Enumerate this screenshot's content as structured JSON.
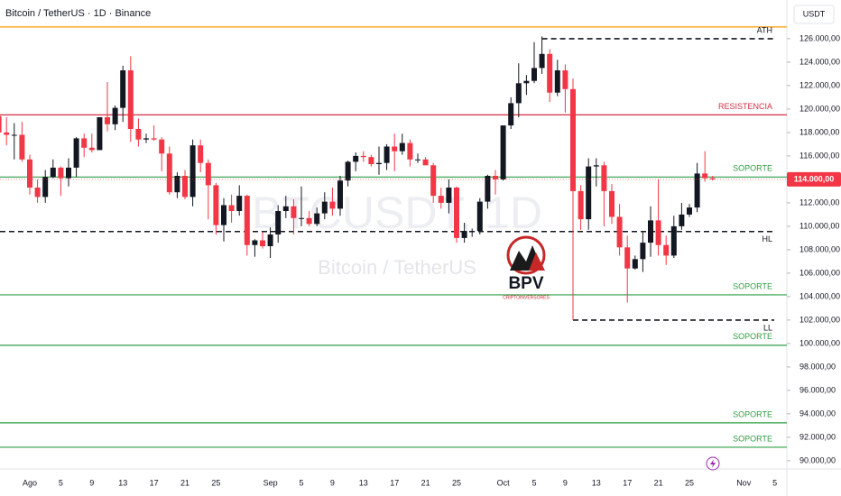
{
  "chart_data": {
    "type": "candlestick",
    "title": "Bitcoin / TetherUS · 1D · Binance",
    "currency": "USDT",
    "watermark": {
      "symbol": "BTCUSDT, 1D",
      "name": "Bitcoin / TetherUS"
    },
    "logo": {
      "name": "BPV",
      "tagline": "CRIPTOINVERSORES"
    },
    "up_color": "#131722",
    "down_color": "#f23645",
    "categories": [
      null,
      null,
      null,
      null,
      "Ago",
      null,
      null,
      null,
      "5",
      null,
      null,
      null,
      "9",
      null,
      null,
      null,
      "13",
      null,
      null,
      null,
      "17",
      null,
      null,
      null,
      "21",
      null,
      null,
      null,
      "25",
      null,
      null,
      null,
      null,
      null,
      null,
      "Sep",
      null,
      null,
      null,
      "5",
      null,
      null,
      null,
      "9",
      null,
      null,
      null,
      "13",
      null,
      null,
      null,
      "17",
      null,
      null,
      null,
      "21",
      null,
      null,
      null,
      "25",
      null,
      null,
      null,
      null,
      null,
      "Oct",
      null,
      null,
      null,
      "5",
      null,
      null,
      null,
      "9",
      null,
      null,
      null,
      "13",
      null,
      null,
      null,
      "17",
      null,
      null,
      null,
      "21",
      null,
      null,
      null,
      "25",
      null,
      null,
      null,
      null,
      null,
      null,
      "Nov",
      null,
      null,
      null,
      "5"
    ],
    "open": [
      119400,
      118000,
      117800,
      117800,
      115700,
      113300,
      112500,
      114200,
      115000,
      114100,
      115000,
      117500,
      116700,
      116500,
      119300,
      118700,
      120100,
      123300,
      118300,
      117400,
      117500,
      117400,
      116200,
      112900,
      114300,
      112500,
      116900,
      115400,
      113500,
      110100,
      111800,
      111300,
      112600,
      108400,
      108800,
      108300,
      109300,
      111300,
      111700,
      110700,
      110700,
      110200,
      111100,
      112100,
      111500,
      113900,
      115500,
      116000,
      115900,
      115300,
      115400,
      116800,
      116400,
      117100,
      115700,
      115700,
      115200,
      112600,
      112000,
      113300,
      109000,
      109600,
      109600,
      112100,
      114300,
      114000,
      118600,
      120500,
      122200,
      122400,
      123500,
      124700,
      121400,
      123300,
      121700,
      113000,
      110600,
      115100,
      115200,
      113000,
      110800,
      108200,
      106400,
      107200,
      108600,
      110500,
      108400,
      107500,
      110000,
      111000,
      111600,
      114500,
      114100,
      null,
      null,
      null,
      null,
      null,
      null,
      null,
      null
    ],
    "high": [
      119800,
      119300,
      118800,
      118900,
      116100,
      114000,
      114800,
      115700,
      115100,
      115800,
      117600,
      117900,
      117900,
      119300,
      122300,
      120300,
      123700,
      124500,
      119200,
      117900,
      118600,
      117600,
      116800,
      114600,
      114800,
      117400,
      117400,
      115700,
      113700,
      112400,
      112700,
      113500,
      112700,
      108900,
      109500,
      109900,
      111800,
      112600,
      112300,
      113400,
      111300,
      111600,
      112900,
      113300,
      114300,
      115600,
      116300,
      116400,
      116100,
      116800,
      117000,
      117900,
      117900,
      117400,
      116200,
      115900,
      115400,
      113300,
      114000,
      113400,
      110300,
      109800,
      112400,
      114400,
      114800,
      118600,
      121000,
      123900,
      122900,
      125700,
      126200,
      125100,
      124200,
      123800,
      122600,
      113500,
      115800,
      115800,
      115500,
      113600,
      111900,
      109200,
      107500,
      109500,
      111700,
      114000,
      109200,
      110900,
      112000,
      111900,
      115400,
      116400,
      114300,
      null,
      null,
      null,
      null,
      null,
      null,
      null,
      null
    ],
    "low": [
      117400,
      116900,
      115700,
      115500,
      112700,
      112000,
      112000,
      114100,
      112600,
      113400,
      114200,
      115900,
      116300,
      116500,
      118100,
      118200,
      118900,
      117200,
      116800,
      117100,
      117300,
      114700,
      112700,
      112400,
      112300,
      111700,
      114600,
      110600,
      109300,
      108700,
      110300,
      110900,
      107500,
      107400,
      108100,
      107300,
      108600,
      110700,
      109300,
      110000,
      110000,
      110000,
      110600,
      110900,
      110900,
      113400,
      114700,
      115500,
      115100,
      114400,
      114800,
      114700,
      116100,
      115100,
      115400,
      115200,
      112000,
      111500,
      111100,
      108600,
      108600,
      109100,
      109300,
      111500,
      112700,
      113900,
      118300,
      119300,
      121200,
      122200,
      123000,
      120600,
      121100,
      119700,
      102000,
      109700,
      109700,
      113400,
      110000,
      110200,
      107500,
      103500,
      106300,
      106100,
      107400,
      107500,
      106700,
      107300,
      109700,
      110800,
      111200,
      113800,
      113900,
      null,
      null,
      null,
      null,
      null,
      null,
      null,
      null
    ],
    "close": [
      118000,
      117800,
      117800,
      115700,
      113300,
      112500,
      114200,
      115000,
      114100,
      115000,
      117500,
      116700,
      116500,
      119300,
      118700,
      120100,
      123300,
      118300,
      117400,
      117500,
      117400,
      116200,
      112900,
      114300,
      112500,
      116900,
      115400,
      113500,
      110100,
      111800,
      111300,
      112600,
      108400,
      108800,
      108300,
      109300,
      111300,
      111700,
      110700,
      110700,
      110200,
      111100,
      112100,
      111500,
      113900,
      115500,
      116000,
      115900,
      115300,
      115400,
      116800,
      116400,
      117100,
      115700,
      115700,
      115200,
      112600,
      112000,
      113300,
      109000,
      109600,
      109600,
      112100,
      114300,
      114000,
      118600,
      120500,
      122200,
      122400,
      123500,
      124700,
      121400,
      123300,
      121700,
      113000,
      110600,
      115100,
      115200,
      113000,
      110800,
      108200,
      106400,
      107200,
      108600,
      110500,
      108400,
      107500,
      110000,
      111000,
      111600,
      114500,
      114100,
      114000,
      null,
      null,
      null,
      null,
      null,
      null,
      null,
      null
    ],
    "ylim": [
      89300,
      129300
    ],
    "yticks": [
      {
        "value": 90000,
        "label": "90.000,00"
      },
      {
        "value": 92000,
        "label": "92.000,00"
      },
      {
        "value": 94000,
        "label": "94.000,00"
      },
      {
        "value": 96000,
        "label": "96.000,00"
      },
      {
        "value": 98000,
        "label": "98.000,00"
      },
      {
        "value": 100000,
        "label": "100.000,00"
      },
      {
        "value": 102000,
        "label": "102.000,00"
      },
      {
        "value": 104000,
        "label": "104.000,00"
      },
      {
        "value": 106000,
        "label": "106.000,00"
      },
      {
        "value": 108000,
        "label": "108.000,00"
      },
      {
        "value": 110000,
        "label": "110.000,00"
      },
      {
        "value": 112000,
        "label": "112.000,00"
      },
      {
        "value": 114000,
        "label": "114.000,00"
      },
      {
        "value": 116000,
        "label": "116.000,00"
      },
      {
        "value": 118000,
        "label": "118.000,00"
      },
      {
        "value": 120000,
        "label": "120.000,00"
      },
      {
        "value": 122000,
        "label": "122.000,00"
      },
      {
        "value": 124000,
        "label": "124.000,00"
      },
      {
        "value": 126000,
        "label": "126.000,00"
      }
    ],
    "grid": false,
    "price_tag": {
      "value": 114000,
      "label": "114.000,00"
    },
    "levels": [
      {
        "value": 127000,
        "color": "#ff9800",
        "style": "solid"
      },
      {
        "value": 126000,
        "label": "ATH",
        "color": "#131722",
        "style": "dashed",
        "from": "max",
        "label_position": "above"
      },
      {
        "value": 119500,
        "label": "RESISTENCIA",
        "color": "#d32f44",
        "style": "solid",
        "label_position": "above"
      },
      {
        "value": 114200,
        "label": "SOPORTE",
        "color": "#2e9e45",
        "style": "solid",
        "label_position": "above"
      },
      {
        "value": 109550,
        "label": "HL",
        "color": "#131722",
        "style": "dashed",
        "label_position": "below"
      },
      {
        "value": 104150,
        "label": "SOPORTE",
        "color": "#2e9e45",
        "style": "solid",
        "label_position": "above"
      },
      {
        "value": 102000,
        "label": "LL",
        "color": "#131722",
        "style": "dashed",
        "from": "min",
        "label_position": "below"
      },
      {
        "value": 99850,
        "label": "SOPORTE",
        "color": "#2e9e45",
        "style": "solid",
        "label_position": "above"
      },
      {
        "value": 93230,
        "label": "SOPORTE",
        "color": "#2e9e45",
        "style": "solid",
        "label_position": "above"
      },
      {
        "value": 91150,
        "label": "SOPORTE",
        "color": "#2e9e45",
        "style": "solid",
        "label_position": "above"
      }
    ]
  }
}
